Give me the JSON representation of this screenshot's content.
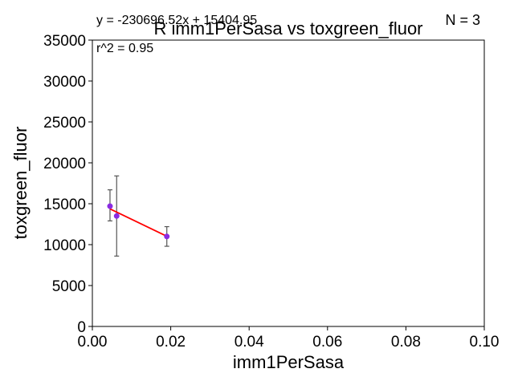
{
  "chart_data": {
    "type": "scatter",
    "title": "R imm1PerSasa vs toxgreen_fluor",
    "xlabel": "imm1PerSasa",
    "ylabel": "toxgreen_fluor",
    "xlim": [
      0,
      0.1
    ],
    "ylim": [
      0,
      35000
    ],
    "x_ticks": [
      0,
      0.02,
      0.04,
      0.06,
      0.08,
      0.1
    ],
    "x_tick_labels": [
      "0.00",
      "0.02",
      "0.04",
      "0.06",
      "0.08",
      "0.10"
    ],
    "y_ticks": [
      0,
      5000,
      10000,
      15000,
      20000,
      25000,
      30000,
      35000
    ],
    "y_tick_labels": [
      "0",
      "5000",
      "10000",
      "15000",
      "20000",
      "25000",
      "30000",
      "35000"
    ],
    "grid": false,
    "points": [
      {
        "x": 0.0045,
        "y": 14700,
        "yerr_low": 12900,
        "yerr_high": 16700
      },
      {
        "x": 0.0062,
        "y": 13500,
        "yerr_low": 8600,
        "yerr_high": 18400
      },
      {
        "x": 0.019,
        "y": 11000,
        "yerr_low": 9800,
        "yerr_high": 12200
      }
    ],
    "fit": {
      "slope": -230696.52,
      "intercept": 15404.95,
      "x_range": [
        0.0045,
        0.019
      ]
    },
    "annotations": {
      "equation": "y = -230696.52x + 15404.95",
      "r2": "r^2 = 0.95",
      "n": "N = 3"
    },
    "colors": {
      "point": "#8a2be2",
      "fit_line": "#ff0000",
      "error_bar": "#555555",
      "axes": "#000000"
    }
  }
}
